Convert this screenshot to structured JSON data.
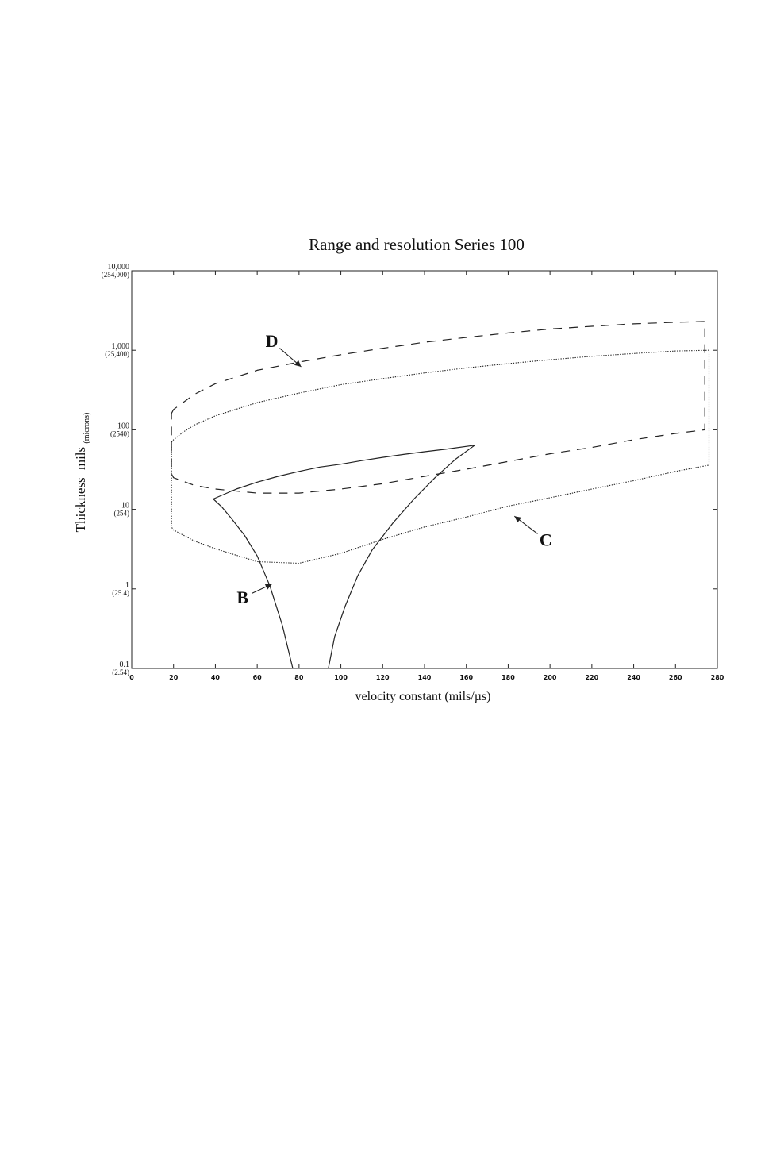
{
  "chart_data": {
    "type": "line",
    "title": "Range and resolution Series 100",
    "xlabel": "velocity constant (mils/µs)",
    "ylabel": "Thickness",
    "ylabel_unit": "mils",
    "ylabel_unit_alt": "(microns)",
    "xlim": [
      0,
      280
    ],
    "ylim": [
      0.1,
      10000
    ],
    "yscale": "log",
    "grid": false,
    "x_ticks": [
      "0",
      "20",
      "40",
      "60",
      "80",
      "100",
      "120",
      "140",
      "160",
      "180",
      "200",
      "220",
      "240",
      "260",
      "280"
    ],
    "y_ticks": [
      {
        "value": 0.1,
        "label": "0.1",
        "sub": "(2.54)"
      },
      {
        "value": 1,
        "label": "1",
        "sub": "(25.4)"
      },
      {
        "value": 10,
        "label": "10",
        "sub": "(254)"
      },
      {
        "value": 100,
        "label": "100",
        "sub": "(2540)"
      },
      {
        "value": 1000,
        "label": "1,000",
        "sub": "(25,400)"
      },
      {
        "value": 10000,
        "label": "10,000",
        "sub": "(254,000)"
      }
    ],
    "series": [
      {
        "name": "D",
        "style": "dashed",
        "x": [
          19,
          20,
          30,
          40,
          60,
          80,
          100,
          120,
          140,
          160,
          180,
          200,
          220,
          240,
          260,
          274,
          274,
          260,
          240,
          220,
          200,
          180,
          160,
          140,
          120,
          100,
          80,
          60,
          40,
          30,
          20,
          19,
          19
        ],
        "y": [
          160,
          180,
          280,
          380,
          560,
          710,
          880,
          1060,
          1260,
          1450,
          1650,
          1850,
          2000,
          2150,
          2250,
          2300,
          100,
          90,
          75,
          60,
          50,
          40,
          32,
          26,
          21,
          18,
          16,
          16,
          18,
          20,
          25,
          28,
          160
        ]
      },
      {
        "name": "C",
        "style": "dotted",
        "x": [
          19,
          20,
          25,
          30,
          40,
          60,
          80,
          100,
          120,
          140,
          160,
          180,
          200,
          220,
          240,
          260,
          276,
          276,
          260,
          240,
          220,
          200,
          180,
          160,
          140,
          120,
          100,
          80,
          60,
          40,
          30,
          20,
          19,
          19
        ],
        "y": [
          70,
          75,
          95,
          115,
          150,
          220,
          290,
          370,
          440,
          520,
          600,
          680,
          760,
          840,
          910,
          980,
          1000,
          36,
          30,
          23,
          18,
          14,
          11,
          8,
          6,
          4.2,
          2.8,
          2.1,
          2.2,
          3.2,
          4,
          5.5,
          6,
          70
        ]
      },
      {
        "name": "B",
        "style": "solid",
        "x": [
          77,
          72,
          66,
          60,
          54,
          48,
          43,
          39,
          50,
          60,
          70,
          80,
          90,
          100,
          110,
          120,
          130,
          140,
          150,
          164,
          155,
          145,
          135,
          125,
          115,
          108,
          102,
          97,
          94
        ],
        "y": [
          0.1,
          0.35,
          1.1,
          2.6,
          4.7,
          7.5,
          10.8,
          13.5,
          18,
          22,
          26,
          30,
          34,
          37,
          41,
          45,
          49,
          53,
          57,
          64,
          43,
          25,
          13.5,
          6.8,
          3.1,
          1.45,
          0.6,
          0.25,
          0.1
        ]
      }
    ],
    "annotations": [
      {
        "text": "D",
        "x": 67,
        "y": 1100,
        "arrow_to": [
          81,
          620
        ]
      },
      {
        "text": "C",
        "x": 198,
        "y": 3.5,
        "arrow_to": [
          183,
          8.2
        ]
      },
      {
        "text": "B",
        "x": 53,
        "y": 0.66,
        "arrow_to": [
          67,
          1.15
        ]
      }
    ]
  }
}
